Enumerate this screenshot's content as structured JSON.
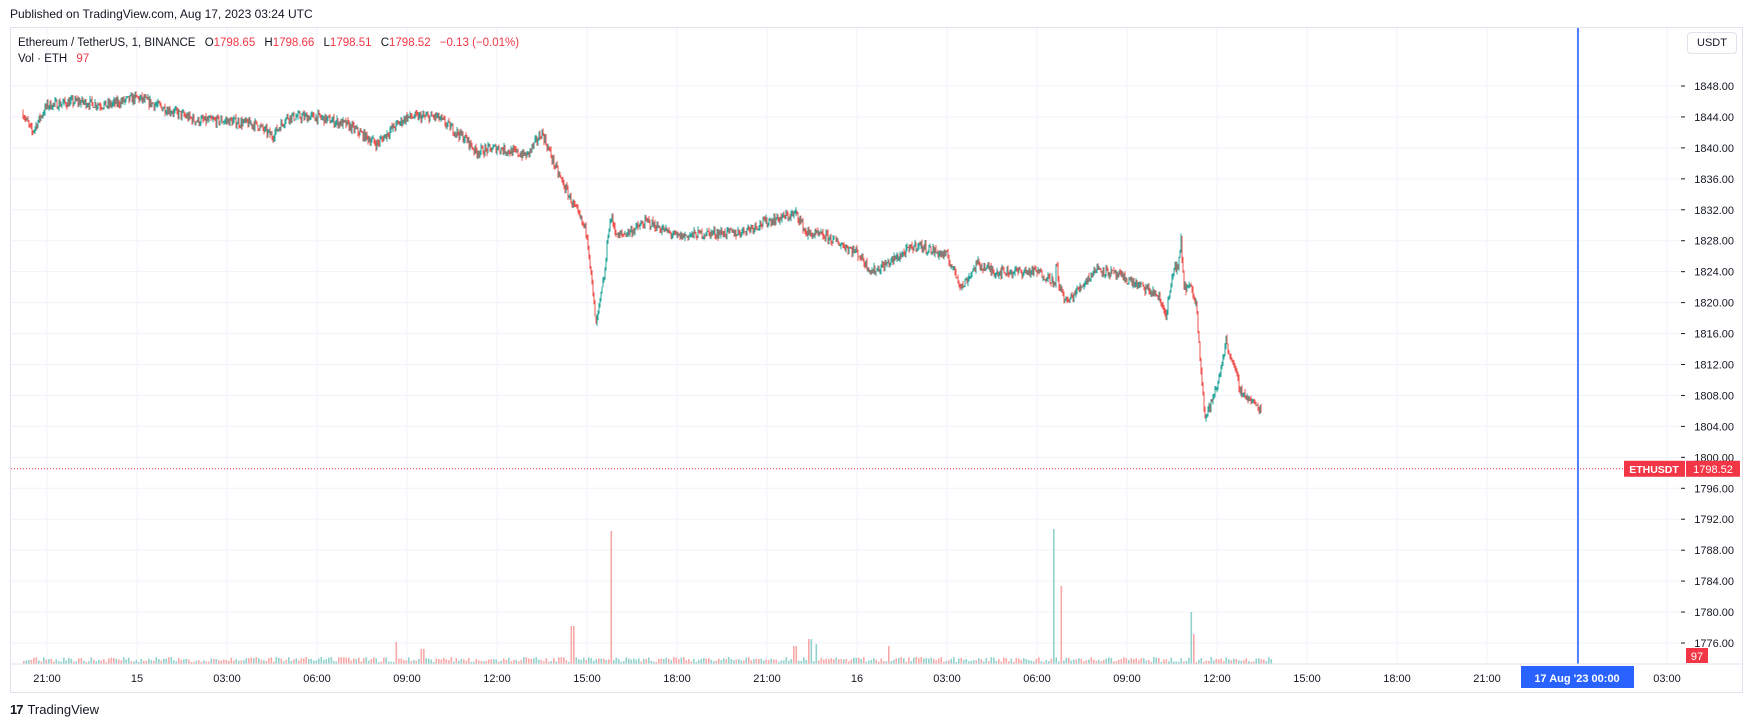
{
  "published": "Published on TradingView.com, Aug 17, 2023 03:24 UTC",
  "legend": {
    "symbol": "Ethereum / TetherUS, 1, BINANCE",
    "o_label": "O",
    "o_value": "1798.65",
    "h_label": "H",
    "h_value": "1798.66",
    "l_label": "L",
    "l_value": "1798.51",
    "c_label": "C",
    "c_value": "1798.52",
    "change": "−0.13 (−0.01%)",
    "vol_label": "Vol · ETH",
    "vol_value": "97"
  },
  "currency_button": "USDT",
  "footer": {
    "logo_mark": "17",
    "logo_text": "TradingView"
  },
  "colors": {
    "up": "#26a69a",
    "down": "#ef5350",
    "accent": "#2962ff",
    "last": "#f23645"
  },
  "chart_data": {
    "type": "line",
    "title": "Ethereum / TetherUS, 1, BINANCE",
    "ylim": [
      1773,
      1851
    ],
    "y_ticks": [
      "1848.00",
      "1844.00",
      "1840.00",
      "1836.00",
      "1832.00",
      "1828.00",
      "1824.00",
      "1820.00",
      "1816.00",
      "1812.00",
      "1808.00",
      "1804.00",
      "1800.00",
      "1796.00",
      "1792.00",
      "1788.00",
      "1784.00",
      "1780.00",
      "1776.00"
    ],
    "x_ticks": [
      "21:00",
      "15",
      "03:00",
      "06:00",
      "09:00",
      "12:00",
      "15:00",
      "18:00",
      "21:00",
      "16",
      "03:00",
      "06:00",
      "09:00",
      "12:00",
      "15:00",
      "18:00",
      "21:00",
      "00:00",
      "03:00"
    ],
    "x_range_hours": [
      -0.8,
      30.8
    ],
    "price_series": {
      "name": "ETHUSDT",
      "x_hours": [
        -0.8,
        -0.5,
        0,
        1,
        2,
        3,
        4,
        5,
        6,
        7,
        7.5,
        8,
        9,
        10,
        11,
        11.5,
        12,
        13,
        14,
        14.3,
        15,
        16,
        16.5,
        17,
        18,
        18.3,
        18.6,
        18.7,
        18.8,
        18.9,
        19.0,
        19.3,
        19.6,
        20,
        21,
        22,
        23,
        24,
        25,
        25.3,
        26,
        27,
        27.5,
        28,
        29,
        30,
        30.5,
        31,
        31.6,
        32,
        33,
        33.5,
        33.6,
        33.65,
        33.7,
        33.75,
        34,
        35,
        36,
        37,
        37.3,
        37.6,
        37.7,
        37.8,
        37.9,
        38.1,
        38.3,
        38.6,
        39,
        39.3,
        39.5,
        39.8,
        40.5
      ],
      "values": [
        1844.5,
        1842,
        1845.5,
        1846,
        1845.5,
        1846.5,
        1845,
        1843.5,
        1843.5,
        1843,
        1841.5,
        1844,
        1844,
        1843,
        1840.5,
        1842.5,
        1844,
        1844,
        1841,
        1839.5,
        1840,
        1839,
        1842,
        1837,
        1829,
        1817,
        1824,
        1829,
        1831,
        1830,
        1828.5,
        1829,
        1829.5,
        1830.5,
        1828.5,
        1829,
        1829,
        1830.5,
        1831.5,
        1829,
        1828.5,
        1826.5,
        1824,
        1825,
        1827.5,
        1826,
        1822,
        1825,
        1824,
        1824,
        1824,
        1823,
        1822,
        1825.5,
        1823,
        1822,
        1820,
        1824.5,
        1823,
        1821,
        1818.5,
        1825,
        1824,
        1828,
        1822,
        1822,
        1820,
        1805,
        1809,
        1815,
        1812.5,
        1808.5,
        1806
      ],
      "last_value": 1798.52
    },
    "volume_series": {
      "name": "Vol · ETH",
      "last_value": 97
    },
    "crosshair_label": "17 Aug '23   00:00",
    "last_price_label": "ETHUSDT",
    "last_price_value": "1798.52",
    "volume_last_label": "97"
  }
}
